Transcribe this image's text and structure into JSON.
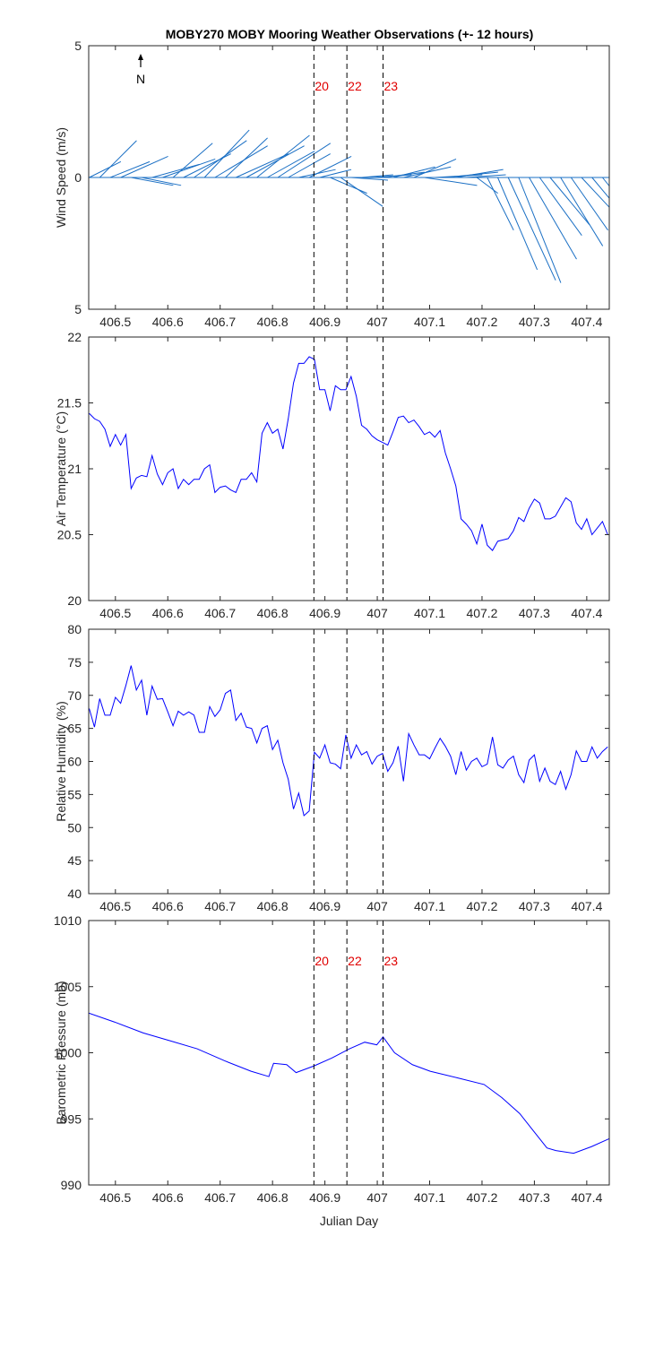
{
  "title": "MOBY270 MOBY Mooring Weather Observations (+- 12 hours)",
  "events": {
    "x": [
      406.879,
      406.942,
      407.011
    ],
    "labels": [
      "20",
      "22",
      "23"
    ],
    "color": "#e00000"
  },
  "chart_data": [
    {
      "type": "wind_stick",
      "ylabel": "Wind Speed (m/s)",
      "north_label": "N",
      "show_event_labels": true,
      "color": "#1a6fc4",
      "xlim": [
        406.449,
        407.443
      ],
      "xticks": [
        406.5,
        406.6,
        406.7,
        406.8,
        406.9,
        407,
        407.1,
        407.2,
        407.3,
        407.4
      ],
      "ylim": [
        -5,
        5
      ],
      "yticks": [
        {
          "value": -5,
          "label": "5"
        },
        0,
        5
      ],
      "x": [
        406.45,
        406.47,
        406.49,
        406.51,
        406.53,
        406.55,
        406.57,
        406.59,
        406.61,
        406.63,
        406.65,
        406.67,
        406.69,
        406.71,
        406.73,
        406.75,
        406.77,
        406.79,
        406.81,
        406.83,
        406.85,
        406.87,
        406.89,
        406.91,
        406.93,
        406.95,
        406.97,
        406.99,
        407.01,
        407.03,
        407.05,
        407.07,
        407.09,
        407.11,
        407.13,
        407.15,
        407.17,
        407.19,
        407.21,
        407.23,
        407.25,
        407.27,
        407.29,
        407.31,
        407.33,
        407.35,
        407.37,
        407.39,
        407.41,
        407.43
      ],
      "u": [
        1.2,
        1.4,
        1.5,
        1.8,
        1.6,
        1.5,
        1.8,
        2.0,
        1.5,
        1.8,
        2.0,
        1.7,
        2.0,
        1.6,
        2.0,
        2.2,
        2.0,
        1.8,
        2.0,
        1.6,
        1.4,
        1.6,
        1.2,
        1.4,
        1.6,
        1.4,
        1.2,
        1.5,
        1.6,
        1.6,
        1.8,
        1.6,
        2.0,
        1.8,
        2.0,
        1.8,
        1.5,
        0.8,
        1.0,
        1.5,
        1.8,
        1.6,
        1.8,
        1.6,
        1.5,
        1.6,
        1.4,
        1.4,
        1.0,
        0.8
      ],
      "v": [
        0.6,
        1.4,
        0.6,
        0.8,
        -0.3,
        -0.3,
        0.5,
        0.7,
        1.3,
        0.9,
        1.4,
        1.8,
        1.2,
        1.5,
        0.9,
        1.2,
        1.6,
        1.0,
        1.3,
        0.9,
        0.3,
        0.8,
        0.3,
        -0.6,
        -1.1,
        -0.1,
        0.1,
        0.1,
        0.2,
        0.4,
        0.4,
        0.7,
        -0.3,
        0.1,
        0.2,
        0.3,
        0.1,
        -0.6,
        -2.0,
        -3.5,
        -3.9,
        -4.0,
        -3.1,
        -2.2,
        -1.8,
        -2.6,
        -2.0,
        -1.5,
        -1.2,
        -1.0
      ]
    },
    {
      "type": "line",
      "ylabel": "Air Temperature (°C)",
      "show_event_labels": false,
      "xlim": [
        406.449,
        407.443
      ],
      "xticks": [
        406.5,
        406.6,
        406.7,
        406.8,
        406.9,
        407,
        407.1,
        407.2,
        407.3,
        407.4
      ],
      "ylim": [
        20,
        22
      ],
      "yticks": [
        20,
        20.5,
        21,
        21.5,
        22
      ],
      "x": [
        406.45,
        406.46,
        406.47,
        406.48,
        406.49,
        406.5,
        406.51,
        406.52,
        406.53,
        406.54,
        406.55,
        406.56,
        406.57,
        406.58,
        406.59,
        406.6,
        406.61,
        406.62,
        406.63,
        406.64,
        406.65,
        406.66,
        406.67,
        406.68,
        406.69,
        406.7,
        406.71,
        406.72,
        406.73,
        406.74,
        406.75,
        406.76,
        406.77,
        406.78,
        406.79,
        406.8,
        406.81,
        406.82,
        406.83,
        406.84,
        406.85,
        406.86,
        406.87,
        406.88,
        406.89,
        406.9,
        406.91,
        406.92,
        406.93,
        406.94,
        406.95,
        406.96,
        406.97,
        406.98,
        406.99,
        407,
        407.01,
        407.02,
        407.03,
        407.04,
        407.05,
        407.06,
        407.07,
        407.08,
        407.09,
        407.1,
        407.11,
        407.12,
        407.13,
        407.14,
        407.15,
        407.16,
        407.17,
        407.18,
        407.19,
        407.2,
        407.21,
        407.22,
        407.23,
        407.24,
        407.25,
        407.26,
        407.27,
        407.28,
        407.29,
        407.3,
        407.31,
        407.32,
        407.33,
        407.34,
        407.35,
        407.36,
        407.37,
        407.38,
        407.39,
        407.4,
        407.41,
        407.42,
        407.43,
        407.44
      ],
      "series": [
        {
          "color": "#0000ff",
          "values": [
            21.42,
            21.38,
            21.36,
            21.3,
            21.17,
            21.26,
            21.18,
            21.26,
            20.85,
            20.93,
            20.95,
            20.94,
            21.1,
            20.96,
            20.88,
            20.97,
            21.0,
            20.85,
            20.92,
            20.88,
            20.92,
            20.92,
            21.0,
            21.03,
            20.82,
            20.86,
            20.87,
            20.84,
            20.82,
            20.92,
            20.92,
            20.97,
            20.9,
            21.27,
            21.35,
            21.27,
            21.3,
            21.15,
            21.38,
            21.65,
            21.8,
            21.8,
            21.85,
            21.83,
            21.6,
            21.6,
            21.44,
            21.63,
            21.6,
            21.6,
            21.7,
            21.55,
            21.33,
            21.3,
            21.25,
            21.22,
            21.2,
            21.18,
            21.28,
            21.39,
            21.4,
            21.35,
            21.37,
            21.32,
            21.26,
            21.28,
            21.24,
            21.29,
            21.12,
            21.0,
            20.87,
            20.62,
            20.58,
            20.53,
            20.43,
            20.58,
            20.42,
            20.38,
            20.45,
            20.46,
            20.47,
            20.53,
            20.63,
            20.6,
            20.7,
            20.77,
            20.74,
            20.62,
            20.62,
            20.64,
            20.71,
            20.78,
            20.75,
            20.59,
            20.54,
            20.62,
            20.5,
            20.55,
            20.6,
            20.5
          ]
        }
      ]
    },
    {
      "type": "line",
      "ylabel": "Relative Humidity (%)",
      "show_event_labels": false,
      "xlim": [
        406.449,
        407.443
      ],
      "xticks": [
        406.5,
        406.6,
        406.7,
        406.8,
        406.9,
        407,
        407.1,
        407.2,
        407.3,
        407.4
      ],
      "ylim": [
        40,
        80
      ],
      "yticks": [
        40,
        45,
        50,
        55,
        60,
        65,
        70,
        75,
        80
      ],
      "x": [
        406.45,
        406.46,
        406.47,
        406.48,
        406.49,
        406.5,
        406.51,
        406.52,
        406.53,
        406.54,
        406.55,
        406.56,
        406.57,
        406.58,
        406.59,
        406.6,
        406.61,
        406.62,
        406.63,
        406.64,
        406.65,
        406.66,
        406.67,
        406.68,
        406.69,
        406.7,
        406.71,
        406.72,
        406.73,
        406.74,
        406.75,
        406.76,
        406.77,
        406.78,
        406.79,
        406.8,
        406.81,
        406.82,
        406.83,
        406.84,
        406.85,
        406.86,
        406.87,
        406.88,
        406.89,
        406.9,
        406.91,
        406.92,
        406.93,
        406.94,
        406.95,
        406.96,
        406.97,
        406.98,
        406.99,
        407,
        407.01,
        407.02,
        407.03,
        407.04,
        407.05,
        407.06,
        407.07,
        407.08,
        407.09,
        407.1,
        407.11,
        407.12,
        407.13,
        407.14,
        407.15,
        407.16,
        407.17,
        407.18,
        407.19,
        407.2,
        407.21,
        407.22,
        407.23,
        407.24,
        407.25,
        407.26,
        407.27,
        407.28,
        407.29,
        407.3,
        407.31,
        407.32,
        407.33,
        407.34,
        407.35,
        407.36,
        407.37,
        407.38,
        407.39,
        407.4,
        407.41,
        407.42,
        407.43,
        407.44
      ],
      "series": [
        {
          "color": "#0000ff",
          "values": [
            68,
            65.2,
            69.5,
            67,
            67,
            69.7,
            68.8,
            71.5,
            74.5,
            70.8,
            72.3,
            67,
            71.4,
            69.4,
            69.5,
            67.5,
            65.4,
            67.6,
            67,
            67.5,
            67,
            64.4,
            64.4,
            68.3,
            66.8,
            67.8,
            70.3,
            70.8,
            66.2,
            67.3,
            65.2,
            65,
            62.8,
            65,
            65.4,
            61.8,
            63.2,
            59.8,
            57.3,
            52.8,
            55.2,
            51.8,
            52.5,
            61.4,
            60.5,
            62.5,
            59.8,
            59.6,
            58.9,
            64,
            60.5,
            62.5,
            61,
            61.5,
            59.6,
            60.8,
            61.2,
            58.5,
            59.8,
            62.3,
            57,
            64.2,
            62.5,
            61,
            61,
            60.4,
            62,
            63.5,
            62.3,
            60.8,
            58,
            61.5,
            58.7,
            60,
            60.5,
            59.2,
            59.6,
            63.7,
            59.5,
            59,
            60.2,
            60.8,
            58,
            56.8,
            60.2,
            61,
            57,
            59,
            57,
            56.5,
            58.5,
            55.8,
            58,
            61.6,
            60,
            60,
            62.2,
            60.5,
            61.5,
            62.2
          ]
        }
      ]
    },
    {
      "type": "line",
      "ylabel": "Barometric Pressure (mb)",
      "xlabel": "Julian Day",
      "show_event_labels": true,
      "xlim": [
        406.449,
        407.443
      ],
      "xticks": [
        406.5,
        406.6,
        406.7,
        406.8,
        406.9,
        407,
        407.1,
        407.2,
        407.3,
        407.4
      ],
      "ylim": [
        990,
        1010
      ],
      "yticks": [
        990,
        995,
        1000,
        1005,
        1010
      ],
      "x": [
        406.449,
        406.5,
        406.553,
        406.605,
        406.656,
        406.708,
        406.759,
        406.793,
        406.802,
        406.827,
        406.845,
        406.879,
        406.913,
        406.947,
        406.976,
        406.999,
        407.011,
        407.033,
        407.067,
        407.101,
        407.153,
        407.204,
        407.238,
        407.272,
        407.298,
        407.324,
        407.341,
        407.375,
        407.409,
        407.443
      ],
      "series": [
        {
          "color": "#0000ff",
          "values": [
            1003,
            1002.3,
            1001.5,
            1000.9,
            1000.3,
            999.4,
            998.6,
            998.2,
            999.2,
            999.1,
            998.5,
            999,
            999.6,
            1000.3,
            1000.8,
            1000.6,
            1001.2,
            1000,
            999.1,
            998.6,
            998.1,
            997.6,
            996.6,
            995.4,
            994.1,
            992.8,
            992.6,
            992.4,
            992.9,
            993.5
          ]
        }
      ]
    }
  ]
}
